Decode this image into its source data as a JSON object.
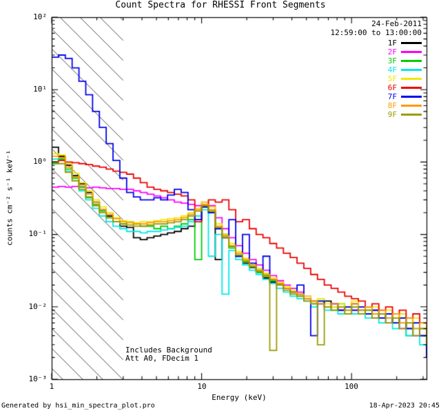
{
  "title": "Count Spectra for RHESSI Front Segments",
  "annotations": {
    "date": "24-Feb-2011",
    "time_range": "12:59:00 to 13:00:00",
    "background_note": "Includes Background",
    "atten_note": "Att A0, FDecim 1"
  },
  "footer": {
    "generated_by": "Generated by hsi_min_spectra_plot.pro",
    "timestamp": "18-Apr-2023 20:45"
  },
  "chart_data": {
    "type": "line",
    "subtype": "step-histogram-loglog",
    "title": "Count Spectra for RHESSI Front Segments",
    "xlabel": "Energy (keV)",
    "ylabel": "counts cm⁻² s⁻¹ keV⁻¹",
    "xscale": "log",
    "yscale": "log",
    "xlim": [
      1,
      316.2
    ],
    "ylim": [
      0.001,
      100
    ],
    "grid": false,
    "legend_position": "top-right-inside",
    "hatch_region": {
      "xmin": 1,
      "xmax": 3,
      "style": "diagonal-hatch"
    },
    "xticks": {
      "major": [
        1,
        10,
        100
      ],
      "labels": [
        "1",
        "10",
        "100"
      ]
    },
    "yticks": {
      "major": [
        100,
        10,
        1,
        0.1,
        0.01,
        0.001
      ],
      "labels": [
        "10²",
        "10¹",
        "10⁰",
        "10⁻¹",
        "10⁻²",
        "10⁻³"
      ]
    },
    "x": [
      1.0,
      1.11,
      1.233,
      1.369,
      1.52,
      1.688,
      1.874,
      2.081,
      2.31,
      2.565,
      2.848,
      3.162,
      3.511,
      3.899,
      4.329,
      4.806,
      5.337,
      5.926,
      6.579,
      7.305,
      8.111,
      9.006,
      10.0,
      11.1,
      12.33,
      13.69,
      15.2,
      16.88,
      18.74,
      20.81,
      23.1,
      25.65,
      28.48,
      31.62,
      35.11,
      38.99,
      43.29,
      48.06,
      53.37,
      59.26,
      65.79,
      73.05,
      81.11,
      90.06,
      100.0,
      111.0,
      123.3,
      136.9,
      152.0,
      168.8,
      187.4,
      208.1,
      231.0,
      256.5,
      284.8,
      316.2
    ],
    "series": [
      {
        "name": "1F",
        "color": "#000000",
        "values": [
          1.6,
          1.2,
          0.9,
          0.65,
          0.5,
          0.38,
          0.28,
          0.22,
          0.18,
          0.15,
          0.13,
          0.125,
          0.09,
          0.085,
          0.09,
          0.095,
          0.1,
          0.105,
          0.11,
          0.12,
          0.13,
          0.16,
          0.24,
          0.2,
          0.045,
          0.1,
          0.07,
          0.05,
          0.04,
          0.035,
          0.03,
          0.025,
          0.022,
          0.02,
          0.018,
          0.016,
          0.015,
          0.013,
          0.012,
          0.011,
          0.012,
          0.01,
          0.009,
          0.01,
          0.011,
          0.009,
          0.008,
          0.009,
          0.007,
          0.008,
          0.006,
          0.007,
          0.005,
          0.006,
          0.004,
          0.002
        ]
      },
      {
        "name": "2F",
        "color": "#ff00ff",
        "values": [
          0.45,
          0.46,
          0.45,
          0.46,
          0.45,
          0.44,
          0.45,
          0.44,
          0.43,
          0.43,
          0.42,
          0.42,
          0.4,
          0.38,
          0.36,
          0.34,
          0.32,
          0.3,
          0.28,
          0.27,
          0.26,
          0.25,
          0.28,
          0.25,
          0.17,
          0.12,
          0.09,
          0.07,
          0.055,
          0.045,
          0.038,
          0.032,
          0.027,
          0.023,
          0.02,
          0.018,
          0.016,
          0.014,
          0.012,
          0.011,
          0.01,
          0.011,
          0.009,
          0.01,
          0.009,
          0.01,
          0.008,
          0.007,
          0.008,
          0.006,
          0.007,
          0.005,
          0.006,
          0.004,
          0.005,
          0.003
        ]
      },
      {
        "name": "3F",
        "color": "#00cc00",
        "values": [
          0.95,
          1.1,
          0.8,
          0.6,
          0.45,
          0.33,
          0.26,
          0.21,
          0.17,
          0.15,
          0.14,
          0.15,
          0.14,
          0.13,
          0.13,
          0.12,
          0.13,
          0.12,
          0.13,
          0.14,
          0.16,
          0.045,
          0.25,
          0.21,
          0.12,
          0.09,
          0.065,
          0.05,
          0.042,
          0.036,
          0.03,
          0.027,
          0.023,
          0.02,
          0.018,
          0.016,
          0.014,
          0.013,
          0.011,
          0.012,
          0.01,
          0.009,
          0.011,
          0.009,
          0.01,
          0.008,
          0.009,
          0.007,
          0.008,
          0.007,
          0.006,
          0.007,
          0.004,
          0.006,
          0.005,
          0.003
        ]
      },
      {
        "name": "4F",
        "color": "#00e8e8",
        "values": [
          1.1,
          1.05,
          0.75,
          0.55,
          0.4,
          0.3,
          0.23,
          0.18,
          0.15,
          0.13,
          0.12,
          0.11,
          0.11,
          0.105,
          0.11,
          0.11,
          0.115,
          0.12,
          0.125,
          0.13,
          0.15,
          0.18,
          0.22,
          0.05,
          0.1,
          0.015,
          0.06,
          0.045,
          0.038,
          0.032,
          0.028,
          0.024,
          0.021,
          0.018,
          0.016,
          0.014,
          0.013,
          0.012,
          0.01,
          0.011,
          0.009,
          0.01,
          0.008,
          0.009,
          0.008,
          0.009,
          0.007,
          0.008,
          0.006,
          0.007,
          0.005,
          0.006,
          0.004,
          0.005,
          0.003,
          0.002
        ]
      },
      {
        "name": "5F",
        "color": "#f2e700",
        "values": [
          1.3,
          1.25,
          0.95,
          0.7,
          0.52,
          0.4,
          0.3,
          0.24,
          0.2,
          0.17,
          0.155,
          0.15,
          0.145,
          0.15,
          0.15,
          0.155,
          0.16,
          0.165,
          0.17,
          0.18,
          0.2,
          0.23,
          0.28,
          0.24,
          0.14,
          0.1,
          0.075,
          0.058,
          0.047,
          0.04,
          0.034,
          0.029,
          0.025,
          0.022,
          0.019,
          0.017,
          0.015,
          0.014,
          0.012,
          0.013,
          0.011,
          0.01,
          0.011,
          0.01,
          0.012,
          0.01,
          0.009,
          0.01,
          0.008,
          0.009,
          0.007,
          0.008,
          0.006,
          0.007,
          0.005,
          0.004
        ]
      },
      {
        "name": "6F",
        "color": "#ee0000",
        "values": [
          1.0,
          1.05,
          1.0,
          0.98,
          0.95,
          0.92,
          0.88,
          0.85,
          0.8,
          0.75,
          0.72,
          0.68,
          0.6,
          0.52,
          0.45,
          0.42,
          0.4,
          0.38,
          0.36,
          0.34,
          0.3,
          0.15,
          0.25,
          0.3,
          0.28,
          0.3,
          0.22,
          0.15,
          0.16,
          0.12,
          0.1,
          0.09,
          0.075,
          0.065,
          0.055,
          0.048,
          0.04,
          0.034,
          0.028,
          0.024,
          0.02,
          0.018,
          0.016,
          0.014,
          0.013,
          0.012,
          0.01,
          0.011,
          0.009,
          0.01,
          0.008,
          0.009,
          0.007,
          0.008,
          0.006,
          0.005
        ]
      },
      {
        "name": "7F",
        "color": "#0000ee",
        "values": [
          28,
          30,
          27,
          20,
          13,
          8.5,
          5.0,
          3.0,
          1.8,
          1.05,
          0.6,
          0.38,
          0.33,
          0.3,
          0.3,
          0.32,
          0.3,
          0.35,
          0.42,
          0.38,
          0.22,
          0.16,
          0.24,
          0.2,
          0.12,
          0.09,
          0.16,
          0.05,
          0.1,
          0.04,
          0.032,
          0.05,
          0.024,
          0.021,
          0.018,
          0.016,
          0.02,
          0.013,
          0.004,
          0.012,
          0.01,
          0.011,
          0.009,
          0.01,
          0.009,
          0.01,
          0.008,
          0.009,
          0.007,
          0.008,
          0.006,
          0.007,
          0.005,
          0.006,
          0.004,
          0.002
        ]
      },
      {
        "name": "8F",
        "color": "#ff9900",
        "values": [
          1.2,
          1.15,
          0.85,
          0.62,
          0.47,
          0.36,
          0.28,
          0.22,
          0.19,
          0.165,
          0.15,
          0.145,
          0.14,
          0.14,
          0.145,
          0.15,
          0.15,
          0.155,
          0.16,
          0.17,
          0.19,
          0.22,
          0.26,
          0.22,
          0.13,
          0.095,
          0.07,
          0.055,
          0.045,
          0.038,
          0.032,
          0.028,
          0.024,
          0.021,
          0.018,
          0.016,
          0.015,
          0.013,
          0.012,
          0.011,
          0.01,
          0.011,
          0.01,
          0.009,
          0.011,
          0.009,
          0.01,
          0.008,
          0.009,
          0.007,
          0.008,
          0.006,
          0.007,
          0.005,
          0.006,
          0.004
        ]
      },
      {
        "name": "9F",
        "color": "#9a9a00",
        "values": [
          1.0,
          0.95,
          0.72,
          0.55,
          0.42,
          0.32,
          0.25,
          0.2,
          0.17,
          0.15,
          0.14,
          0.135,
          0.13,
          0.13,
          0.135,
          0.14,
          0.14,
          0.145,
          0.15,
          0.16,
          0.18,
          0.21,
          0.25,
          0.21,
          0.125,
          0.09,
          0.068,
          0.052,
          0.043,
          0.036,
          0.031,
          0.026,
          0.0025,
          0.02,
          0.017,
          0.015,
          0.014,
          0.012,
          0.011,
          0.003,
          0.01,
          0.009,
          0.01,
          0.008,
          0.01,
          0.008,
          0.009,
          0.007,
          0.008,
          0.006,
          0.007,
          0.005,
          0.006,
          0.004,
          0.005,
          0.003
        ]
      }
    ]
  }
}
